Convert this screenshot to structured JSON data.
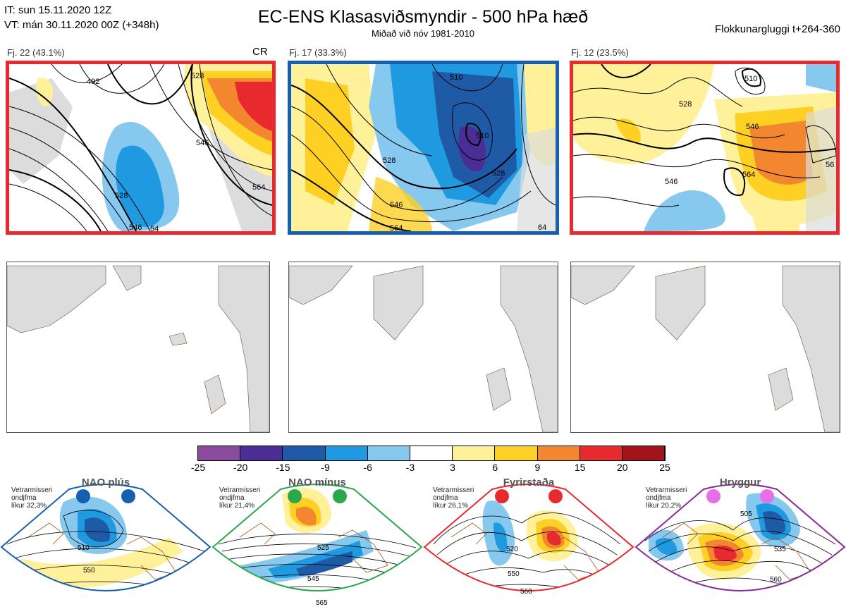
{
  "header": {
    "issue_time": "IT: sun 15.11.2020 12Z",
    "valid_time": "VT: mán 30.11.2020 00Z  (+348h)",
    "title": "EC-ENS Klasasviðsmyndir - 500 hPa hæð",
    "subtitle": "Miðað við nóv 1981-2010",
    "cluster_window": "Flokkunargluggi t+264-360"
  },
  "panels": [
    {
      "label": "Fj. 22 (43.1%)",
      "tag": "CR",
      "frame_color": "#e8292e",
      "contour_labels": [
        "492",
        "528",
        "546",
        "528",
        "546",
        "564",
        "54"
      ]
    },
    {
      "label": "Fj. 17 (33.3%)",
      "tag": "",
      "frame_color": "#1760b0",
      "contour_labels": [
        "510",
        "528",
        "510",
        "528",
        "546",
        "564",
        "64"
      ]
    },
    {
      "label": "Fj. 12 (23.5%)",
      "tag": "",
      "frame_color": "#e8292e",
      "contour_labels": [
        "510",
        "528",
        "546",
        "564",
        "546",
        "56"
      ]
    }
  ],
  "colorbar": {
    "ticks": [
      "-25",
      "-20",
      "-15",
      "-9",
      "-6",
      "-3",
      "3",
      "6",
      "9",
      "15",
      "20",
      "25"
    ],
    "colors": [
      "#8a4a9e",
      "#4a2e96",
      "#1e5aa6",
      "#1f9ae0",
      "#86c8ee",
      "#ffffff",
      "#fff19a",
      "#fdd023",
      "#f3872f",
      "#e8292e",
      "#a3141a"
    ]
  },
  "clusters": [
    {
      "name": "NAO plús",
      "info1": "Vetrarmisseri",
      "info2": "ondjfma",
      "info3": "líkur 32,3%",
      "color": "#1760b0",
      "contour_labels": [
        "510",
        "550"
      ]
    },
    {
      "name": "NAO mínus",
      "info1": "Vetrarmisseri",
      "info2": "ondjfma",
      "info3": "líkur 21,4%",
      "color": "#2aa84a",
      "contour_labels": [
        "525",
        "545",
        "565"
      ]
    },
    {
      "name": "Fyrirstaða",
      "info1": "Vetrarmisseri",
      "info2": "ondjfma",
      "info3": "líkur 26,1%",
      "color": "#e8292e",
      "contour_labels": [
        "520",
        "550",
        "560"
      ]
    },
    {
      "name": "Hryggur",
      "info1": "Vetrarmisseri",
      "info2": "ondjfma",
      "info3": "líkur 20,2%",
      "color": "#8a2a96",
      "contour_labels": [
        "505",
        "535",
        "560"
      ]
    }
  ]
}
